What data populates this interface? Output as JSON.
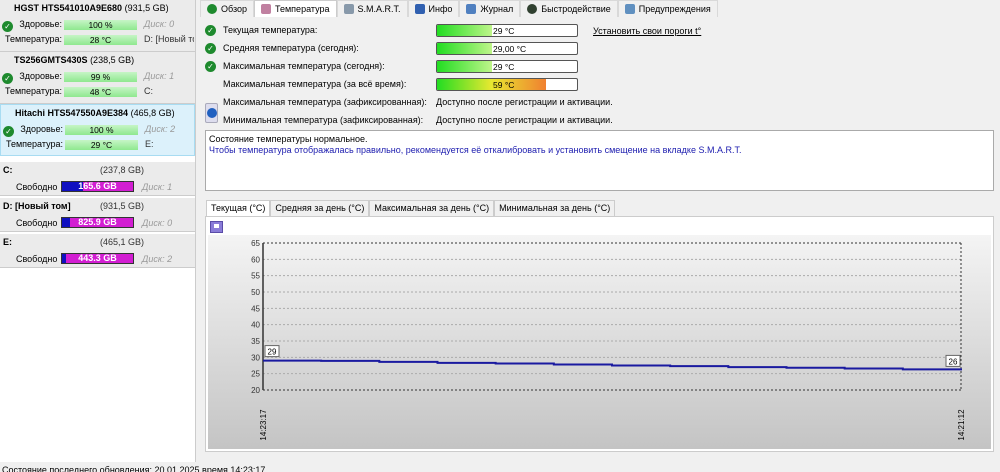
{
  "disks": [
    {
      "model": "HGST HTS541010A9E680",
      "size": "(931,5 GB)",
      "health_label": "Здоровье:",
      "health": "100 %",
      "temp_label": "Температура:",
      "temp": "28 °C",
      "disk": "Диск: 0",
      "volumes": "D: [Новый том]",
      "selected": false
    },
    {
      "model": "TS256GMTS430S",
      "size": "(238,5 GB)",
      "health_label": "Здоровье:",
      "health": "99 %",
      "temp_label": "Температура:",
      "temp": "48 °C",
      "disk": "Диск: 1",
      "volumes": "C:",
      "selected": false
    },
    {
      "model": "Hitachi HTS547550A9E384",
      "size": "(465,8 GB)",
      "health_label": "Здоровье:",
      "health": "100 %",
      "temp_label": "Температура:",
      "temp": "29 °C",
      "disk": "Диск: 2",
      "volumes": "E:",
      "selected": true
    }
  ],
  "partitions": [
    {
      "name": "C:",
      "size": "(237,8 GB)",
      "free_label": "Свободно",
      "free": "165.6 GB",
      "used_fraction": 0.3,
      "disk": "Диск: 1"
    },
    {
      "name": "D: [Новый том]",
      "size": "(931,5 GB)",
      "free_label": "Свободно",
      "free": "825.9 GB",
      "used_fraction": 0.11,
      "disk": "Диск: 0"
    },
    {
      "name": "E:",
      "size": "(465,1 GB)",
      "free_label": "Свободно",
      "free": "443.3 GB",
      "used_fraction": 0.05,
      "disk": "Диск: 2"
    }
  ],
  "tabs": [
    {
      "label": "Обзор",
      "icon": "check-icon",
      "color": "#1e8a2e"
    },
    {
      "label": "Температура",
      "icon": "thermometer-icon",
      "color": "#c080a0",
      "active": true
    },
    {
      "label": "S.M.A.R.T.",
      "icon": "smart-icon",
      "color": "#8899aa"
    },
    {
      "label": "Инфо",
      "icon": "info-icon",
      "color": "#3060b0"
    },
    {
      "label": "Журнал",
      "icon": "journal-icon",
      "color": "#5080c0"
    },
    {
      "label": "Быстродействие",
      "icon": "speed-icon",
      "color": "#304030"
    },
    {
      "label": "Предупреждения",
      "icon": "document-icon",
      "color": "#6090c0"
    }
  ],
  "temperature": {
    "rows": [
      {
        "label": "Текущая температура:",
        "value": "29 °C",
        "fill": 0.39,
        "check": true
      },
      {
        "label": "Средняя температура (сегодня):",
        "value": "29,00 °C",
        "fill": 0.39,
        "check": true
      },
      {
        "label": "Максимальная температура (сегодня):",
        "value": "29 °C",
        "fill": 0.39,
        "check": true
      },
      {
        "label": "Максимальная температура (за всё время):",
        "value": "59 °C",
        "fill": 0.78,
        "check": false
      }
    ],
    "fixed": [
      {
        "label": "Максимальная температура (зафиксированная):",
        "value": "Доступно после регистрации и активации."
      },
      {
        "label": "Минимальная температура (зафиксированная):",
        "value": "Доступно после регистрации и активации."
      }
    ],
    "set_thresholds_link": "Установить свои пороги t°",
    "message_line1": "Состояние температуры нормальное.",
    "message_line2": "Чтобы температура отображалась правильно, рекомендуется её откалибровать и установить смещение на вкладке S.M.A.R.T."
  },
  "chart_tabs": [
    "Текущая (°C)",
    "Средняя за день (°C)",
    "Максимальная за день (°C)",
    "Минимальная за день (°C)"
  ],
  "chart_data": {
    "type": "line",
    "y_ticks": [
      65,
      60,
      55,
      50,
      45,
      40,
      35,
      30,
      25,
      20
    ],
    "ylim": [
      20,
      65
    ],
    "x_labels": [
      "14:23:17",
      "14:21:12"
    ],
    "values": [
      29,
      28.9,
      28.6,
      28.3,
      28.1,
      27.8,
      27.5,
      27.3,
      27.0,
      26.8,
      26.6,
      26.3,
      26
    ],
    "start_label": "29",
    "end_label": "26",
    "line_color": "#1a1aa0",
    "grid": true
  },
  "status": "Состояние последнего обновления: 20.01.2025 время 14:23:17"
}
